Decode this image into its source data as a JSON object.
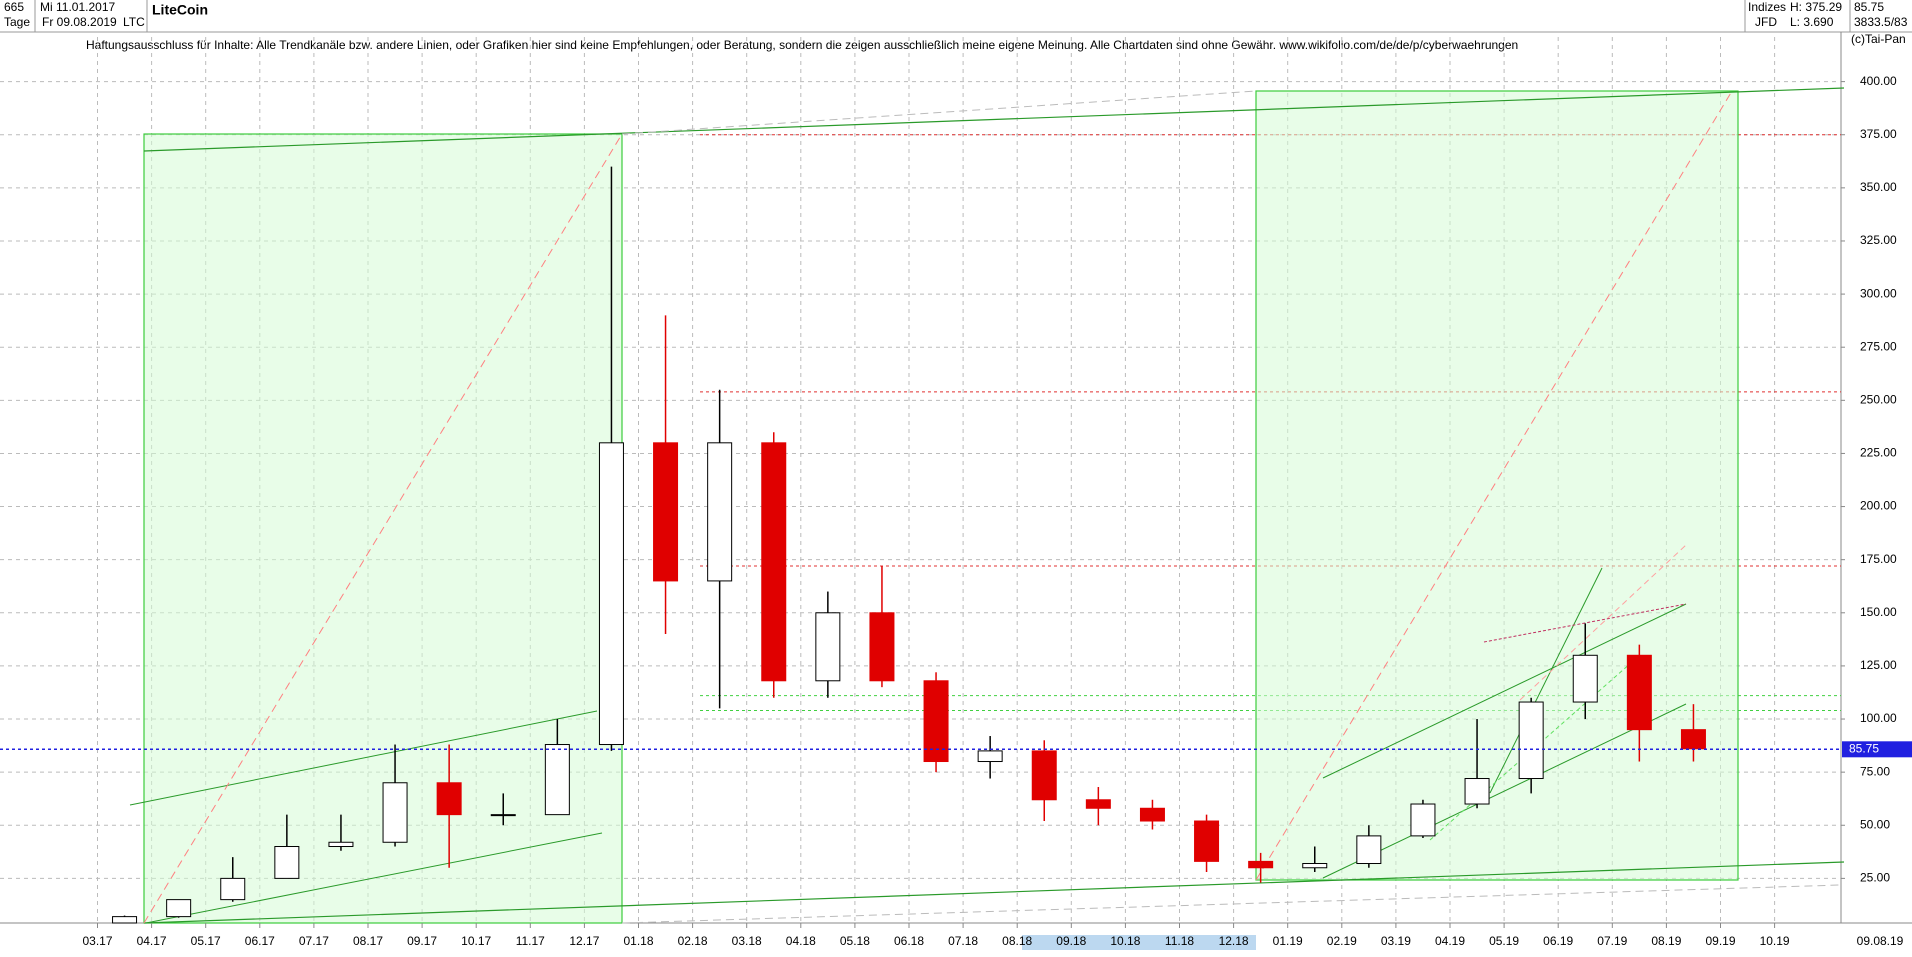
{
  "header": {
    "count": "665",
    "start_date": "Mi 11.01.2017",
    "name": "LiteCoin",
    "period": "Tage",
    "end_date": "Fr 09.08.2019",
    "symbol": "LTC",
    "market": "Indizes",
    "broker": "JFD",
    "high": "H: 375.29",
    "low": "L: 3.690",
    "last": "85.75",
    "volume": "3833.5/83",
    "copyright": "(c)Tai-Pan",
    "disclaimer": "Haftungsausschluss für Inhalte: Alle Trendkanäle bzw. andere Linien, oder Grafiken hier sind keine Empfehlungen, oder Beratung, sondern die zeigen ausschließlich meine eigene Meinung. Alle Chartdaten sind ohne Gewähr.  www.wikifolio.com/de/de/p/cyberwaehrungen"
  },
  "chart_data": {
    "type": "candlestick",
    "categories": [
      "03.17",
      "04.17",
      "05.17",
      "06.17",
      "07.17",
      "08.17",
      "09.17",
      "10.17",
      "11.17",
      "12.17",
      "01.18",
      "02.18",
      "03.18",
      "04.18",
      "05.18",
      "06.18",
      "07.18",
      "08.18",
      "09.18",
      "10.18",
      "11.18",
      "12.18",
      "01.19",
      "02.19",
      "03.19",
      "04.19",
      "05.19",
      "06.19",
      "07.19",
      "08.19",
      "09.19",
      "10.19"
    ],
    "open": [
      4,
      7,
      15,
      25,
      40,
      42,
      70,
      55,
      55,
      88,
      230,
      165,
      230,
      118,
      150,
      118,
      80,
      85,
      62,
      58,
      52,
      33,
      30,
      32,
      45,
      60,
      72,
      108,
      130,
      95,
      null,
      null
    ],
    "high": [
      7.5,
      15,
      35,
      55,
      55,
      88,
      88,
      65,
      100,
      360,
      290,
      255,
      235,
      160,
      172,
      122,
      92,
      90,
      68,
      62,
      55,
      37,
      40,
      50,
      62,
      100,
      110,
      145,
      135,
      107,
      null,
      null
    ],
    "low": [
      3.8,
      6.5,
      14,
      25,
      38,
      40,
      30,
      50,
      55,
      85,
      140,
      105,
      110,
      110,
      115,
      75,
      72,
      52,
      50,
      48,
      28,
      23,
      28,
      30,
      44,
      58,
      65,
      100,
      80,
      80,
      null,
      null
    ],
    "close": [
      7,
      15,
      25,
      40,
      42,
      70,
      55,
      55,
      88,
      230,
      165,
      230,
      118,
      150,
      118,
      80,
      85,
      62,
      58,
      52,
      33,
      30,
      32,
      45,
      60,
      72,
      108,
      130,
      95,
      86,
      null,
      null
    ],
    "colors": {
      "up": "#ffffff",
      "down": "#e00000"
    },
    "end_label": "09.08.19",
    "ylim": [
      4,
      421
    ],
    "yticks": [
      {
        "value": 25,
        "label": "25.00"
      },
      {
        "value": 50,
        "label": "50.00"
      },
      {
        "value": 75,
        "label": "75.00"
      },
      {
        "value": 100,
        "label": "100.00"
      },
      {
        "value": 125,
        "label": "125.00"
      },
      {
        "value": 150,
        "label": "150.00"
      },
      {
        "value": 175,
        "label": "175.00"
      },
      {
        "value": 200,
        "label": "200.00"
      },
      {
        "value": 225,
        "label": "225.00"
      },
      {
        "value": 250,
        "label": "250.00"
      },
      {
        "value": 275,
        "label": "275.00"
      },
      {
        "value": 300,
        "label": "300.00"
      },
      {
        "value": 325,
        "label": "325.00"
      },
      {
        "value": 350,
        "label": "350.00"
      },
      {
        "value": 375,
        "label": "375.00"
      },
      {
        "value": 400,
        "label": "400.00"
      }
    ],
    "levels": [
      {
        "value": 375,
        "color": "#e03030"
      },
      {
        "value": 254,
        "color": "#e03030"
      },
      {
        "value": 172,
        "color": "#e03030"
      },
      {
        "value": 111,
        "color": "#40d040"
      },
      {
        "value": 104,
        "color": "#40d040"
      }
    ],
    "last_price": {
      "value": 85.75,
      "color": "#2020e0"
    },
    "grid": true
  }
}
